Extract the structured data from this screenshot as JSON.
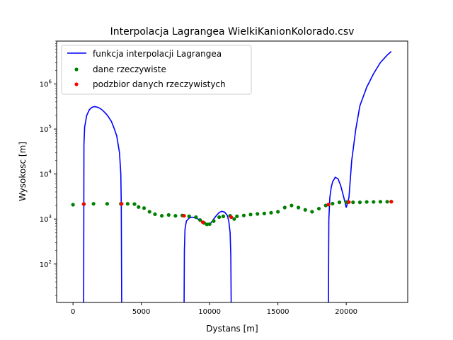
{
  "chart_data": {
    "type": "line",
    "title": "Interpolacja Lagrangea WielkiKanionKolorado.csv",
    "xlabel": "Dystans [m]",
    "ylabel": "Wysokosc [m]",
    "xlim": [
      -1200,
      24500
    ],
    "ylim": [
      14,
      9000000
    ],
    "yscale": "log",
    "grid": false,
    "legend_position": "top-left",
    "x_ticks": [
      0,
      5000,
      10000,
      15000,
      20000
    ],
    "x_tick_labels": [
      "0",
      "5000",
      "10000",
      "15000",
      "20000"
    ],
    "y_ticks": [
      100,
      1000,
      10000,
      100000,
      1000000
    ],
    "y_tick_labels": [
      "10^2",
      "10^3",
      "10^4",
      "10^5",
      "10^6"
    ],
    "series": [
      {
        "name": "funkcja interpolacji Lagrangea",
        "kind": "line",
        "color": "#0000ff",
        "segments": [
          [
            [
              780,
              14
            ],
            [
              785,
              150
            ],
            [
              800,
              45000
            ],
            [
              850,
              110000
            ],
            [
              1000,
              200000
            ],
            [
              1200,
              270000
            ],
            [
              1400,
              305000
            ],
            [
              1600,
              315000
            ],
            [
              1800,
              305000
            ],
            [
              2000,
              285000
            ],
            [
              2200,
              255000
            ],
            [
              2500,
              205000
            ],
            [
              2800,
              150000
            ],
            [
              3000,
              105000
            ],
            [
              3200,
              70000
            ],
            [
              3400,
              30000
            ],
            [
              3500,
              10000
            ],
            [
              3530,
              2200
            ],
            [
              3540,
              500
            ],
            [
              3550,
              80
            ],
            [
              3560,
              14
            ]
          ],
          [
            [
              8130,
              14
            ],
            [
              8150,
              200
            ],
            [
              8200,
              600
            ],
            [
              8300,
              900
            ],
            [
              8500,
              1050
            ],
            [
              8700,
              1100
            ],
            [
              9000,
              1050
            ],
            [
              9300,
              950
            ],
            [
              9500,
              850
            ],
            [
              9700,
              780
            ],
            [
              9900,
              750
            ],
            [
              10100,
              820
            ],
            [
              10300,
              1000
            ],
            [
              10500,
              1200
            ],
            [
              10700,
              1400
            ],
            [
              10900,
              1480
            ],
            [
              11100,
              1420
            ],
            [
              11300,
              1200
            ],
            [
              11400,
              900
            ],
            [
              11500,
              500
            ],
            [
              11550,
              150
            ],
            [
              11580,
              14
            ]
          ],
          [
            [
              18700,
              14
            ],
            [
              18710,
              150
            ],
            [
              18730,
              1000
            ],
            [
              18800,
              3000
            ],
            [
              18900,
              5000
            ],
            [
              19000,
              6700
            ],
            [
              19200,
              8500
            ],
            [
              19400,
              7800
            ],
            [
              19600,
              5500
            ],
            [
              19800,
              3200
            ],
            [
              20000,
              1800
            ],
            [
              20200,
              3000
            ],
            [
              20400,
              20000
            ],
            [
              20700,
              100000
            ],
            [
              21000,
              330000
            ],
            [
              21500,
              850000
            ],
            [
              22000,
              1700000
            ],
            [
              22500,
              3000000
            ],
            [
              23000,
              4400000
            ],
            [
              23300,
              5300000
            ]
          ]
        ]
      },
      {
        "name": "dane rzeczywiste",
        "kind": "scatter",
        "color": "#008000",
        "points": [
          [
            0,
            2080
          ],
          [
            800,
            2150
          ],
          [
            1500,
            2180
          ],
          [
            2500,
            2180
          ],
          [
            3500,
            2180
          ],
          [
            4000,
            2180
          ],
          [
            4500,
            2150
          ],
          [
            4800,
            1850
          ],
          [
            5200,
            1750
          ],
          [
            5600,
            1450
          ],
          [
            6000,
            1280
          ],
          [
            6500,
            1180
          ],
          [
            7000,
            1230
          ],
          [
            7500,
            1180
          ],
          [
            8000,
            1200
          ],
          [
            8500,
            1150
          ],
          [
            9000,
            1100
          ],
          [
            9300,
            950
          ],
          [
            9600,
            820
          ],
          [
            9800,
            760
          ],
          [
            10000,
            770
          ],
          [
            10300,
            900
          ],
          [
            10700,
            1100
          ],
          [
            11000,
            1150
          ],
          [
            11500,
            1180
          ],
          [
            11800,
            1000
          ],
          [
            12000,
            1150
          ],
          [
            12500,
            1200
          ],
          [
            13000,
            1260
          ],
          [
            13500,
            1300
          ],
          [
            14000,
            1330
          ],
          [
            14500,
            1380
          ],
          [
            15000,
            1450
          ],
          [
            15500,
            1800
          ],
          [
            16000,
            2000
          ],
          [
            16500,
            1800
          ],
          [
            17000,
            1600
          ],
          [
            17500,
            1450
          ],
          [
            18000,
            1700
          ],
          [
            18500,
            2000
          ],
          [
            19000,
            2200
          ],
          [
            19500,
            2350
          ],
          [
            20000,
            2380
          ],
          [
            20500,
            2350
          ],
          [
            21000,
            2350
          ],
          [
            21500,
            2400
          ],
          [
            22000,
            2400
          ],
          [
            22500,
            2420
          ],
          [
            23000,
            2420
          ],
          [
            23300,
            2430
          ]
        ]
      },
      {
        "name": "podzbior danych rzeczywistych",
        "kind": "scatter",
        "color": "#ff0000",
        "points": [
          [
            780,
            2150
          ],
          [
            3560,
            2180
          ],
          [
            8130,
            1180
          ],
          [
            9500,
            850
          ],
          [
            11580,
            1100
          ],
          [
            18700,
            2100
          ],
          [
            20200,
            2380
          ],
          [
            23300,
            2430
          ]
        ]
      }
    ]
  }
}
